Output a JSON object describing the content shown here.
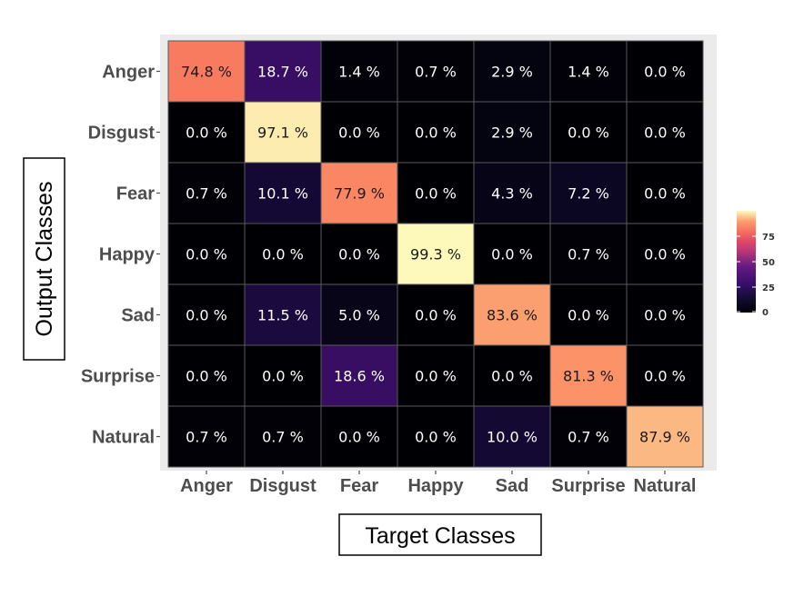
{
  "chart_data": {
    "type": "heatmap",
    "title": "",
    "xlabel": "Target Classes",
    "ylabel": "Output Classes",
    "x_categories": [
      "Anger",
      "Disgust",
      "Fear",
      "Happy",
      "Sad",
      "Surprise",
      "Natural"
    ],
    "y_categories": [
      "Anger",
      "Disgust",
      "Fear",
      "Happy",
      "Sad",
      "Surprise",
      "Natural"
    ],
    "values": [
      [
        74.8,
        18.7,
        1.4,
        0.7,
        2.9,
        1.4,
        0.0
      ],
      [
        0.0,
        97.1,
        0.0,
        0.0,
        2.9,
        0.0,
        0.0
      ],
      [
        0.7,
        10.1,
        77.9,
        0.0,
        4.3,
        7.2,
        0.0
      ],
      [
        0.0,
        0.0,
        0.0,
        99.3,
        0.0,
        0.7,
        0.0
      ],
      [
        0.0,
        11.5,
        5.0,
        0.0,
        83.6,
        0.0,
        0.0
      ],
      [
        0.0,
        0.0,
        18.6,
        0.0,
        0.0,
        81.3,
        0.0
      ],
      [
        0.7,
        0.7,
        0.0,
        0.0,
        10.0,
        0.7,
        87.9
      ]
    ],
    "value_suffix": " %",
    "colorbar": {
      "ticks": [
        0,
        25,
        50,
        75
      ],
      "min": 0,
      "max": 100,
      "colormap": "magma",
      "placement": "right"
    },
    "grid": false
  }
}
